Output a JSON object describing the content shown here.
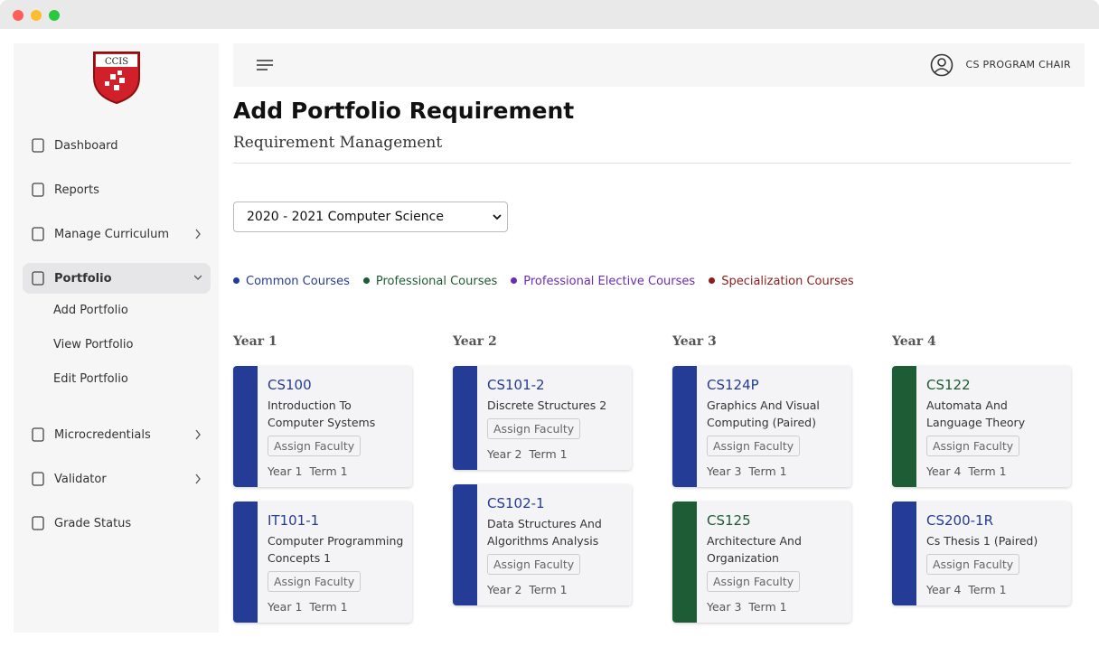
{
  "sidebar": {
    "logo": "CCIS",
    "nav": [
      {
        "label": "Dashboard"
      },
      {
        "label": "Reports"
      },
      {
        "label": "Manage Curriculum",
        "chevron": "right"
      },
      {
        "label": "Portfolio",
        "chevron": "down",
        "active": true,
        "children": [
          "Add Portfolio",
          "View Portfolio",
          "Edit Portfolio"
        ]
      },
      {
        "label": "Microcredentials",
        "chevron": "right"
      },
      {
        "label": "Validator",
        "chevron": "right"
      },
      {
        "label": "Grade Status"
      }
    ]
  },
  "header": {
    "user": "CS PROGRAM CHAIR"
  },
  "page": {
    "title": "Add Portfolio Requirement",
    "subtitle": "Requirement Management"
  },
  "select": {
    "value": "2020 - 2021 Computer Science"
  },
  "legend": [
    {
      "name": "Common Courses",
      "color": "#243c96"
    },
    {
      "name": "Professional Courses",
      "color": "#1d5c34"
    },
    {
      "name": "Professional Elective Courses",
      "color": "#6a2db5"
    },
    {
      "name": "Specialization Courses",
      "color": "#8c1c1c"
    }
  ],
  "years": [
    {
      "label": "Year 1",
      "courses": [
        {
          "code": "CS100",
          "name": "Introduction To Computer Systems",
          "action": "Assign Faculty",
          "year": "Year 1",
          "term": "Term 1",
          "color": "#243c96"
        },
        {
          "code": "IT101-1",
          "name": "Computer Programming Concepts 1",
          "action": "Assign Faculty",
          "year": "Year 1",
          "term": "Term 1",
          "color": "#243c96"
        }
      ]
    },
    {
      "label": "Year 2",
      "courses": [
        {
          "code": "CS101-2",
          "name": "Discrete Structures 2",
          "action": "Assign Faculty",
          "year": "Year 2",
          "term": "Term 1",
          "color": "#243c96"
        },
        {
          "code": "CS102-1",
          "name": "Data Structures And Algorithms Analysis",
          "action": "Assign Faculty",
          "year": "Year 2",
          "term": "Term 1",
          "color": "#243c96"
        }
      ]
    },
    {
      "label": "Year 3",
      "courses": [
        {
          "code": "CS124P",
          "name": "Graphics And Visual Computing (Paired)",
          "action": "Assign Faculty",
          "year": "Year 3",
          "term": "Term 1",
          "color": "#243c96"
        },
        {
          "code": "CS125",
          "name": "Architecture And Organization",
          "action": "Assign Faculty",
          "year": "Year 3",
          "term": "Term 1",
          "color": "#1d5c34"
        }
      ]
    },
    {
      "label": "Year 4",
      "courses": [
        {
          "code": "CS122",
          "name": "Automata And Language Theory",
          "action": "Assign Faculty",
          "year": "Year 4",
          "term": "Term 1",
          "color": "#1d5c34"
        },
        {
          "code": "CS200-1R",
          "name": "Cs Thesis 1 (Paired)",
          "action": "Assign Faculty",
          "year": "Year 4",
          "term": "Term 1",
          "color": "#243c96"
        }
      ]
    }
  ]
}
